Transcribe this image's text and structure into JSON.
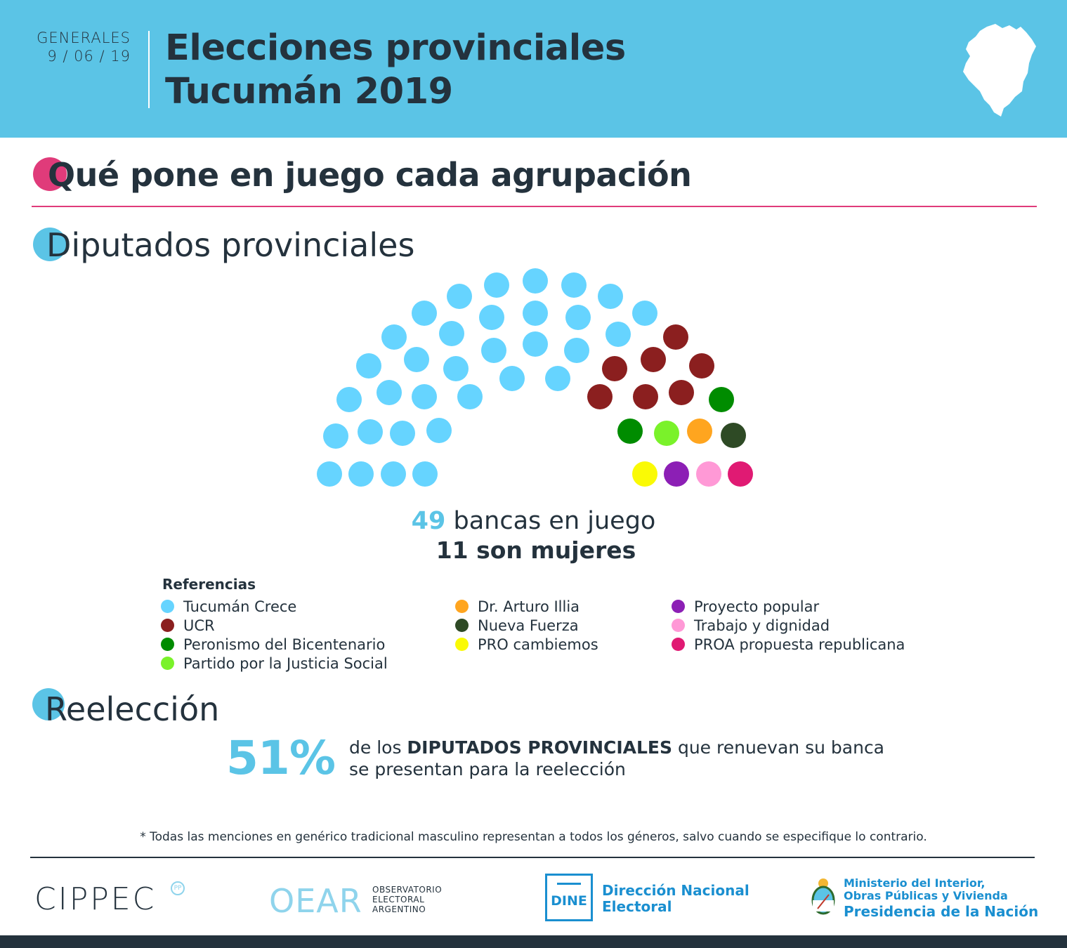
{
  "header": {
    "label": "GENERALES",
    "date": "9 / 06 / 19",
    "title_line1": "Elecciones provinciales",
    "title_line2": "Tucumán 2019",
    "map_icon": "tucuman-map-icon"
  },
  "section1": {
    "title": "Qué pone en juego cada agrupación"
  },
  "section2": {
    "title": "Diputados provinciales"
  },
  "parliament": {
    "total_seats": "49",
    "seats_text": "bancas en juego",
    "women_text": "11 son mujeres"
  },
  "colors": {
    "accent_blue": "#5bc4e6",
    "accent_pink": "#e03b7a",
    "dark": "#24323d"
  },
  "legend": {
    "title": "Referencias",
    "columns": [
      [
        {
          "label": "Tucumán Crece",
          "color": "#66d4ff"
        },
        {
          "label": "UCR",
          "color": "#8b1f1f"
        },
        {
          "label": "Peronismo del Bicentenario",
          "color": "#008c00"
        },
        {
          "label": "Partido por la Justicia Social",
          "color": "#7af22a"
        }
      ],
      [
        {
          "label": "Dr. Arturo Illia",
          "color": "#ffa51f"
        },
        {
          "label": "Nueva Fuerza",
          "color": "#2e4a25"
        },
        {
          "label": "PRO cambiemos",
          "color": "#fafa05"
        }
      ],
      [
        {
          "label": "Proyecto popular",
          "color": "#8c1fb5"
        },
        {
          "label": "Trabajo y dignidad",
          "color": "#ff99d6"
        },
        {
          "label": "PROA propuesta republicana",
          "color": "#e01a73"
        }
      ]
    ]
  },
  "section3": {
    "title": "Reelección"
  },
  "reelection": {
    "percent": "51%",
    "text_pre": "de los ",
    "text_bold": "DIPUTADOS PROVINCIALES",
    "text_post": " que renuevan su banca",
    "text_line2": "se presentan para la reelección"
  },
  "footnote": "* Todas las menciones en genérico tradicional masculino representan a todos los géneros, salvo cuando se especifique lo contrario.",
  "logos": {
    "cippec": "CIPPEC",
    "cippec_badge": "PP",
    "oear": "OEAR",
    "oear_sub": [
      "OBSERVATORIO",
      "ELECTORAL",
      "ARGENTINO"
    ],
    "dine": "DINE",
    "dine_name": [
      "Dirección Nacional",
      "Electoral"
    ],
    "ministry": [
      "Ministerio del Interior,",
      "Obras Públicas y Vivienda"
    ],
    "presidency": "Presidencia de la Nación"
  }
}
